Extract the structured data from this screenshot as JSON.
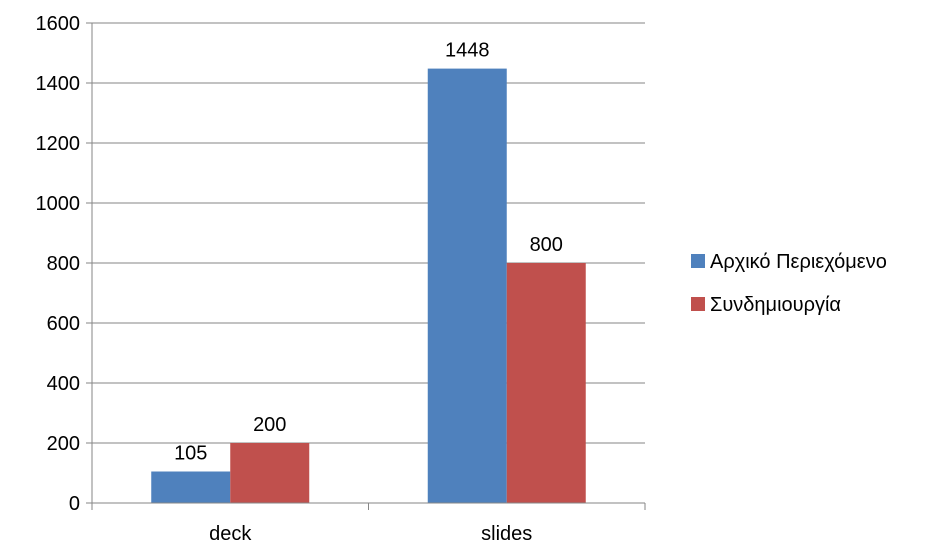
{
  "chart_data": {
    "type": "bar",
    "categories": [
      "deck",
      "slides"
    ],
    "series": [
      {
        "name": "Αρχικό Περιεχόμενο",
        "values": [
          105,
          1448
        ],
        "color": "#4F81BD"
      },
      {
        "name": "Συνδημιουργία",
        "values": [
          200,
          800
        ],
        "color": "#C0504D"
      }
    ],
    "ylim": [
      0,
      1600
    ],
    "yticks": [
      0,
      200,
      400,
      600,
      800,
      1000,
      1200,
      1400,
      1600
    ],
    "grid": true,
    "legend_position": "right",
    "data_labels": true,
    "title": "",
    "xlabel": "",
    "ylabel": ""
  }
}
